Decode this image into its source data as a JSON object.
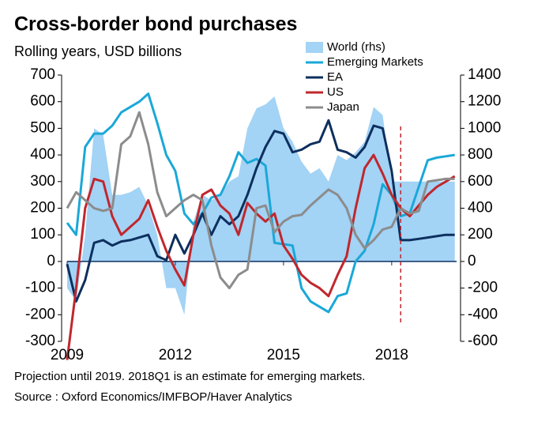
{
  "chart_data": {
    "type": "line",
    "title": "Cross-border bond purchases",
    "subtitle": "Rolling years, USD billions",
    "notes": [
      "Projection until 2019. 2018Q1 is an estimate for emerging markets.",
      "Source : Oxford Economics/IMFBOP/Haver Analytics"
    ],
    "x": [
      2009,
      2009.25,
      2009.5,
      2009.75,
      2010,
      2010.25,
      2010.5,
      2010.75,
      2011,
      2011.25,
      2011.5,
      2011.75,
      2012,
      2012.25,
      2012.5,
      2012.75,
      2013,
      2013.25,
      2013.5,
      2013.75,
      2014,
      2014.25,
      2014.5,
      2014.75,
      2015,
      2015.25,
      2015.5,
      2015.75,
      2016,
      2016.25,
      2016.5,
      2016.75,
      2017,
      2017.25,
      2017.5,
      2017.75,
      2018,
      2018.25,
      2018.5,
      2018.75,
      2019,
      2019.25,
      2019.5,
      2019.75
    ],
    "xlim": [
      2009,
      2019.8
    ],
    "xticks": [
      2009,
      2012,
      2015,
      2018
    ],
    "ylim": [
      -300,
      700
    ],
    "yticks": [
      -300,
      -200,
      -100,
      0,
      100,
      200,
      300,
      400,
      500,
      600,
      700
    ],
    "y2lim": [
      -600,
      1400
    ],
    "y2ticks": [
      -600,
      -400,
      -200,
      0,
      200,
      400,
      600,
      800,
      1000,
      1200,
      1400
    ],
    "projection_line": 2018.25,
    "legend": "top-right",
    "series": [
      {
        "name": "World (rhs)",
        "color": "#a3d3f5",
        "style": "area",
        "axis": "y2",
        "values": [
          -200,
          -300,
          200,
          1000,
          950,
          500,
          500,
          520,
          560,
          420,
          200,
          -200,
          -200,
          -400,
          300,
          500,
          460,
          500,
          600,
          640,
          1000,
          1150,
          1180,
          1240,
          1000,
          900,
          750,
          660,
          700,
          600,
          800,
          760,
          820,
          900,
          1160,
          1100,
          600,
          600,
          600,
          600,
          600,
          600,
          600,
          600
        ]
      },
      {
        "name": "Emerging Markets",
        "color": "#1aa8d8",
        "style": "line",
        "values": [
          145,
          100,
          430,
          480,
          480,
          510,
          560,
          580,
          600,
          630,
          520,
          400,
          340,
          180,
          140,
          180,
          240,
          250,
          320,
          410,
          370,
          385,
          360,
          70,
          65,
          60,
          -100,
          -150,
          -170,
          -190,
          -130,
          -120,
          0,
          40,
          140,
          290,
          250,
          170,
          180,
          280,
          380,
          390,
          395,
          400
        ]
      },
      {
        "name": "EA",
        "color": "#0d2f5e",
        "style": "line",
        "values": [
          -10,
          -150,
          -70,
          70,
          80,
          60,
          75,
          80,
          90,
          100,
          20,
          5,
          100,
          30,
          100,
          180,
          100,
          170,
          140,
          170,
          250,
          350,
          430,
          490,
          480,
          410,
          420,
          440,
          450,
          530,
          420,
          410,
          390,
          430,
          510,
          500,
          340,
          80,
          80,
          85,
          90,
          95,
          100,
          100
        ]
      },
      {
        "name": "US",
        "color": "#c0272d",
        "style": "line",
        "values": [
          -370,
          -100,
          200,
          310,
          300,
          170,
          100,
          130,
          160,
          230,
          130,
          40,
          -30,
          -90,
          100,
          250,
          270,
          210,
          180,
          100,
          220,
          180,
          150,
          180,
          60,
          10,
          -50,
          -80,
          -100,
          -130,
          -50,
          20,
          200,
          350,
          400,
          330,
          250,
          200,
          170,
          210,
          250,
          280,
          300,
          320
        ]
      },
      {
        "name": "Japan",
        "color": "#8c8c8c",
        "style": "line",
        "values": [
          200,
          260,
          230,
          200,
          190,
          200,
          440,
          470,
          560,
          440,
          260,
          170,
          200,
          230,
          250,
          230,
          60,
          -60,
          -100,
          -50,
          -30,
          200,
          210,
          110,
          150,
          170,
          175,
          210,
          240,
          270,
          250,
          200,
          100,
          50,
          80,
          120,
          130,
          200,
          180,
          190,
          300,
          305,
          310,
          310
        ]
      }
    ]
  }
}
